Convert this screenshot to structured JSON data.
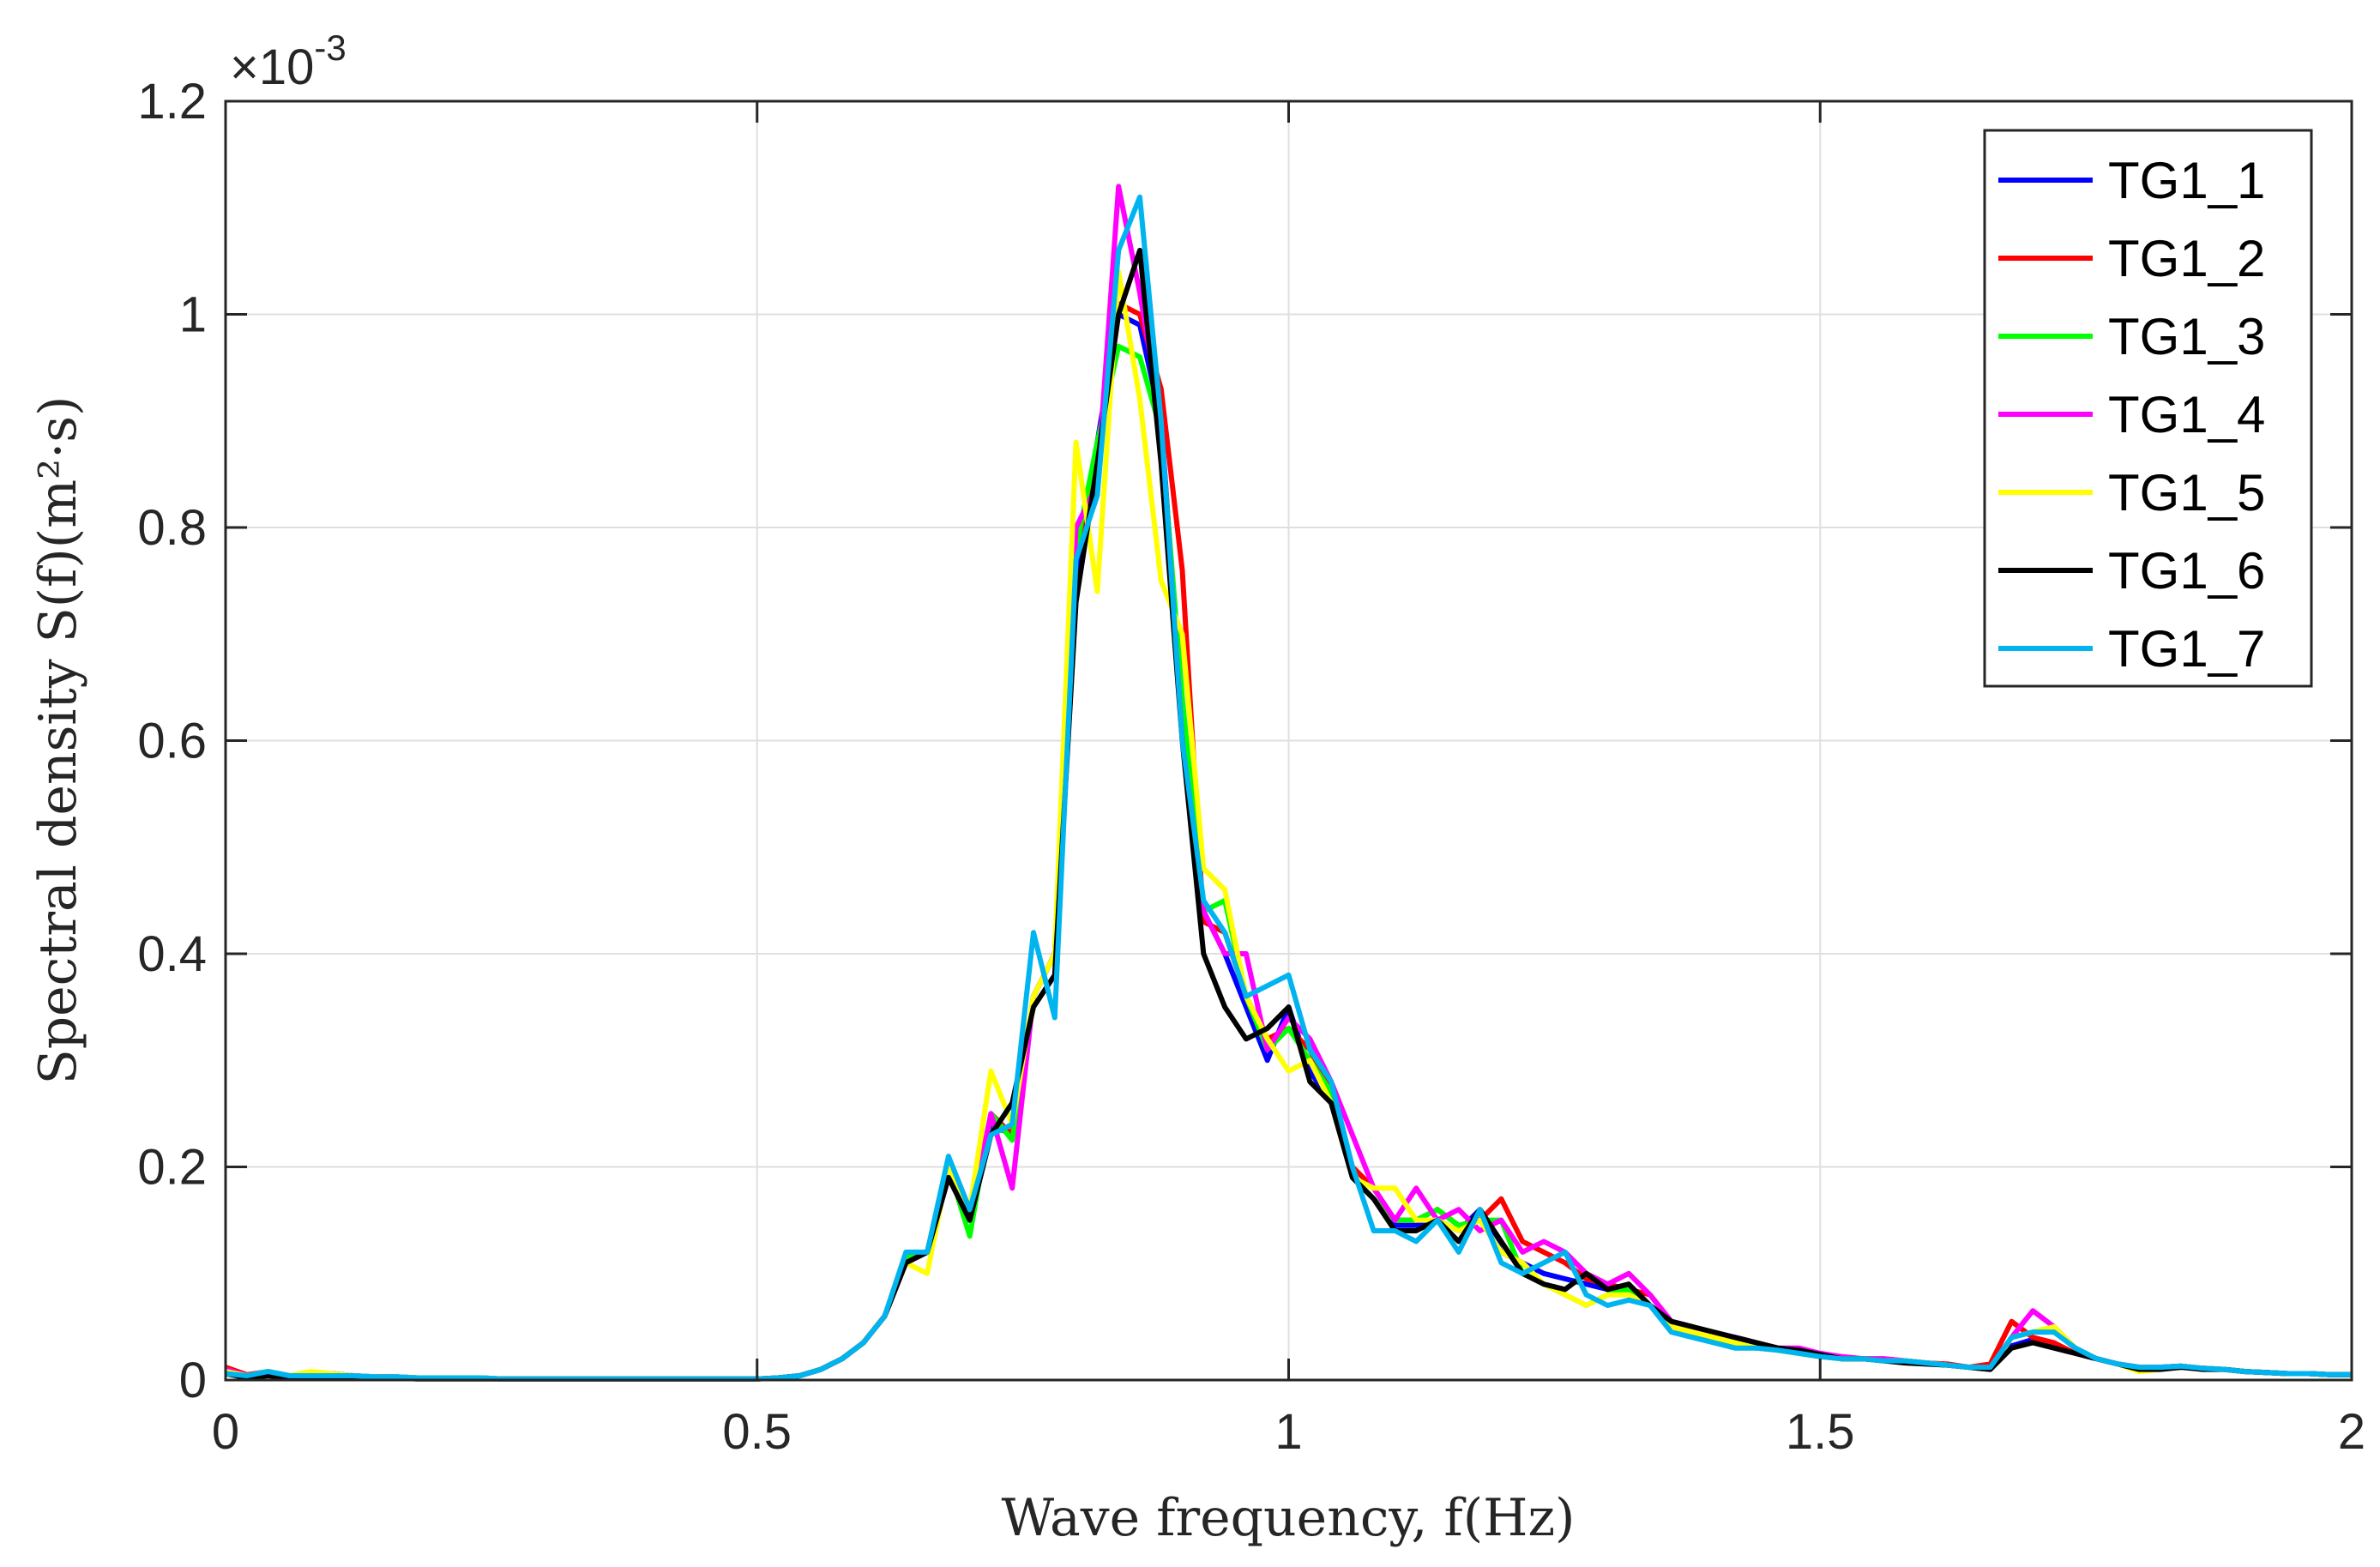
{
  "chart_data": {
    "type": "line",
    "title": "",
    "xlabel": "Wave frequency, f(Hz)",
    "ylabel": "Spectral density S(f)(m²·s)",
    "exponent_label": "×10",
    "exponent_power": "-3",
    "xlim": [
      0,
      2
    ],
    "ylim": [
      0,
      1.2
    ],
    "xticks": [
      0,
      0.5,
      1,
      1.5,
      2
    ],
    "xtick_labels": [
      "0",
      "0.5",
      "1",
      "1.5",
      "2"
    ],
    "yticks": [
      0,
      0.2,
      0.4,
      0.6,
      0.8,
      1,
      1.2
    ],
    "ytick_labels": [
      "0",
      "0.2",
      "0.4",
      "0.6",
      "0.8",
      "1",
      "1.2"
    ],
    "grid": true,
    "legend_position": "top-right",
    "x": [
      0.0,
      0.02,
      0.04,
      0.06,
      0.08,
      0.1,
      0.12,
      0.14,
      0.16,
      0.18,
      0.2,
      0.22,
      0.24,
      0.26,
      0.28,
      0.3,
      0.32,
      0.34,
      0.36,
      0.38,
      0.4,
      0.42,
      0.44,
      0.46,
      0.48,
      0.5,
      0.52,
      0.54,
      0.56,
      0.58,
      0.6,
      0.62,
      0.64,
      0.66,
      0.68,
      0.7,
      0.72,
      0.74,
      0.76,
      0.78,
      0.8,
      0.82,
      0.84,
      0.86,
      0.88,
      0.9,
      0.92,
      0.94,
      0.96,
      0.98,
      1.0,
      1.02,
      1.04,
      1.06,
      1.08,
      1.1,
      1.12,
      1.14,
      1.16,
      1.18,
      1.2,
      1.22,
      1.24,
      1.26,
      1.28,
      1.3,
      1.32,
      1.34,
      1.36,
      1.38,
      1.4,
      1.42,
      1.44,
      1.46,
      1.48,
      1.5,
      1.52,
      1.54,
      1.56,
      1.58,
      1.6,
      1.62,
      1.64,
      1.66,
      1.68,
      1.7,
      1.72,
      1.74,
      1.76,
      1.78,
      1.8,
      1.82,
      1.84,
      1.86,
      1.88,
      1.9,
      1.92,
      1.94,
      1.96,
      1.98,
      2.0
    ],
    "series": [
      {
        "name": "TG1_1",
        "color": "#0000ff",
        "values": [
          0.01,
          0.004,
          0.008,
          0.004,
          0.004,
          0.006,
          0.004,
          0.003,
          0.003,
          0.002,
          0.002,
          0.002,
          0.002,
          0.001,
          0.001,
          0.001,
          0.001,
          0.001,
          0.001,
          0.001,
          0.001,
          0.001,
          0.001,
          0.001,
          0.001,
          0.001,
          0.002,
          0.004,
          0.01,
          0.02,
          0.035,
          0.06,
          0.115,
          0.12,
          0.2,
          0.15,
          0.24,
          0.23,
          0.36,
          0.4,
          0.76,
          0.88,
          1.0,
          0.99,
          0.9,
          0.62,
          0.44,
          0.4,
          0.35,
          0.3,
          0.35,
          0.29,
          0.26,
          0.19,
          0.17,
          0.145,
          0.145,
          0.15,
          0.14,
          0.16,
          0.12,
          0.11,
          0.1,
          0.095,
          0.09,
          0.085,
          0.08,
          0.07,
          0.05,
          0.045,
          0.035,
          0.035,
          0.03,
          0.028,
          0.025,
          0.022,
          0.02,
          0.02,
          0.018,
          0.018,
          0.016,
          0.014,
          0.012,
          0.01,
          0.032,
          0.038,
          0.034,
          0.025,
          0.02,
          0.015,
          0.012,
          0.012,
          0.013,
          0.011,
          0.01,
          0.008,
          0.007,
          0.006,
          0.006,
          0.005,
          0.005
        ]
      },
      {
        "name": "TG1_2",
        "color": "#ff0000",
        "values": [
          0.012,
          0.005,
          0.008,
          0.004,
          0.004,
          0.006,
          0.004,
          0.003,
          0.003,
          0.002,
          0.002,
          0.002,
          0.002,
          0.001,
          0.001,
          0.001,
          0.001,
          0.001,
          0.001,
          0.001,
          0.001,
          0.001,
          0.001,
          0.001,
          0.001,
          0.001,
          0.002,
          0.004,
          0.01,
          0.02,
          0.035,
          0.06,
          0.11,
          0.12,
          0.2,
          0.15,
          0.25,
          0.23,
          0.36,
          0.4,
          0.78,
          0.86,
          1.01,
          1.0,
          0.93,
          0.76,
          0.43,
          0.42,
          0.36,
          0.32,
          0.33,
          0.31,
          0.27,
          0.2,
          0.18,
          0.15,
          0.15,
          0.16,
          0.145,
          0.15,
          0.17,
          0.13,
          0.12,
          0.11,
          0.095,
          0.09,
          0.085,
          0.08,
          0.055,
          0.05,
          0.04,
          0.04,
          0.035,
          0.03,
          0.028,
          0.024,
          0.022,
          0.02,
          0.02,
          0.018,
          0.016,
          0.015,
          0.012,
          0.015,
          0.055,
          0.04,
          0.035,
          0.025,
          0.02,
          0.015,
          0.012,
          0.012,
          0.013,
          0.011,
          0.01,
          0.008,
          0.007,
          0.006,
          0.006,
          0.005,
          0.005
        ]
      },
      {
        "name": "TG1_3",
        "color": "#00ff00",
        "values": [
          0.01,
          0.004,
          0.008,
          0.004,
          0.004,
          0.006,
          0.004,
          0.003,
          0.003,
          0.002,
          0.002,
          0.002,
          0.002,
          0.001,
          0.001,
          0.001,
          0.001,
          0.001,
          0.001,
          0.001,
          0.001,
          0.001,
          0.001,
          0.001,
          0.001,
          0.001,
          0.002,
          0.004,
          0.01,
          0.02,
          0.035,
          0.06,
          0.115,
          0.12,
          0.2,
          0.135,
          0.25,
          0.225,
          0.36,
          0.4,
          0.78,
          0.88,
          0.97,
          0.96,
          0.89,
          0.64,
          0.44,
          0.45,
          0.36,
          0.31,
          0.33,
          0.3,
          0.27,
          0.19,
          0.17,
          0.15,
          0.15,
          0.16,
          0.145,
          0.15,
          0.15,
          0.1,
          0.09,
          0.08,
          0.07,
          0.08,
          0.085,
          0.07,
          0.055,
          0.05,
          0.04,
          0.035,
          0.03,
          0.028,
          0.025,
          0.022,
          0.02,
          0.02,
          0.018,
          0.018,
          0.016,
          0.014,
          0.012,
          0.01,
          0.04,
          0.045,
          0.05,
          0.03,
          0.02,
          0.015,
          0.012,
          0.012,
          0.013,
          0.011,
          0.01,
          0.008,
          0.007,
          0.006,
          0.006,
          0.005,
          0.005
        ]
      },
      {
        "name": "TG1_4",
        "color": "#ff00ff",
        "values": [
          0.01,
          0.004,
          0.008,
          0.004,
          0.004,
          0.006,
          0.004,
          0.003,
          0.003,
          0.002,
          0.002,
          0.002,
          0.002,
          0.001,
          0.001,
          0.001,
          0.001,
          0.001,
          0.001,
          0.001,
          0.001,
          0.001,
          0.001,
          0.001,
          0.001,
          0.001,
          0.002,
          0.004,
          0.01,
          0.02,
          0.035,
          0.06,
          0.11,
          0.12,
          0.2,
          0.15,
          0.25,
          0.18,
          0.36,
          0.4,
          0.8,
          0.84,
          1.12,
          1.02,
          0.9,
          0.6,
          0.44,
          0.4,
          0.4,
          0.31,
          0.34,
          0.32,
          0.28,
          0.23,
          0.18,
          0.15,
          0.18,
          0.15,
          0.16,
          0.14,
          0.15,
          0.12,
          0.13,
          0.12,
          0.1,
          0.09,
          0.1,
          0.08,
          0.055,
          0.05,
          0.04,
          0.04,
          0.035,
          0.03,
          0.03,
          0.025,
          0.022,
          0.02,
          0.02,
          0.018,
          0.016,
          0.014,
          0.012,
          0.01,
          0.04,
          0.065,
          0.05,
          0.03,
          0.02,
          0.015,
          0.012,
          0.012,
          0.013,
          0.011,
          0.01,
          0.008,
          0.007,
          0.006,
          0.006,
          0.005,
          0.005
        ]
      },
      {
        "name": "TG1_5",
        "color": "#ffff00",
        "values": [
          0.008,
          0.004,
          0.008,
          0.004,
          0.008,
          0.006,
          0.004,
          0.003,
          0.003,
          0.002,
          0.002,
          0.002,
          0.002,
          0.001,
          0.001,
          0.001,
          0.001,
          0.001,
          0.001,
          0.001,
          0.001,
          0.001,
          0.001,
          0.001,
          0.001,
          0.001,
          0.002,
          0.004,
          0.01,
          0.02,
          0.035,
          0.06,
          0.11,
          0.1,
          0.2,
          0.16,
          0.29,
          0.24,
          0.36,
          0.4,
          0.88,
          0.74,
          1.04,
          0.92,
          0.75,
          0.7,
          0.48,
          0.46,
          0.36,
          0.32,
          0.29,
          0.3,
          0.26,
          0.19,
          0.18,
          0.18,
          0.15,
          0.15,
          0.14,
          0.15,
          0.12,
          0.11,
          0.09,
          0.08,
          0.07,
          0.08,
          0.08,
          0.07,
          0.05,
          0.045,
          0.04,
          0.035,
          0.03,
          0.028,
          0.025,
          0.022,
          0.02,
          0.02,
          0.018,
          0.018,
          0.016,
          0.014,
          0.012,
          0.01,
          0.04,
          0.045,
          0.05,
          0.03,
          0.02,
          0.015,
          0.008,
          0.01,
          0.013,
          0.011,
          0.01,
          0.008,
          0.007,
          0.006,
          0.006,
          0.005,
          0.005
        ]
      },
      {
        "name": "TG1_6",
        "color": "#000000",
        "values": [
          0.006,
          0.002,
          0.004,
          0.002,
          0.002,
          0.003,
          0.002,
          0.002,
          0.002,
          0.001,
          0.001,
          0.001,
          0.001,
          0.001,
          0.001,
          0.001,
          0.001,
          0.001,
          0.001,
          0.001,
          0.001,
          0.001,
          0.001,
          0.001,
          0.001,
          0.001,
          0.002,
          0.004,
          0.01,
          0.02,
          0.035,
          0.06,
          0.11,
          0.12,
          0.19,
          0.15,
          0.23,
          0.26,
          0.35,
          0.38,
          0.73,
          0.86,
          1.0,
          1.06,
          0.86,
          0.6,
          0.4,
          0.35,
          0.32,
          0.33,
          0.35,
          0.28,
          0.26,
          0.19,
          0.17,
          0.14,
          0.14,
          0.15,
          0.13,
          0.16,
          0.13,
          0.1,
          0.09,
          0.085,
          0.1,
          0.085,
          0.09,
          0.07,
          0.055,
          0.05,
          0.045,
          0.04,
          0.035,
          0.03,
          0.028,
          0.024,
          0.02,
          0.02,
          0.018,
          0.016,
          0.015,
          0.014,
          0.012,
          0.01,
          0.03,
          0.035,
          0.03,
          0.025,
          0.02,
          0.015,
          0.01,
          0.01,
          0.012,
          0.01,
          0.01,
          0.008,
          0.007,
          0.006,
          0.006,
          0.005,
          0.005
        ]
      },
      {
        "name": "TG1_7",
        "color": "#00b4f0",
        "values": [
          0.006,
          0.004,
          0.008,
          0.004,
          0.004,
          0.004,
          0.004,
          0.003,
          0.003,
          0.002,
          0.002,
          0.002,
          0.002,
          0.001,
          0.001,
          0.001,
          0.001,
          0.001,
          0.001,
          0.001,
          0.001,
          0.001,
          0.001,
          0.001,
          0.001,
          0.001,
          0.002,
          0.004,
          0.01,
          0.02,
          0.035,
          0.06,
          0.12,
          0.12,
          0.21,
          0.16,
          0.23,
          0.24,
          0.42,
          0.34,
          0.77,
          0.83,
          1.06,
          1.11,
          0.9,
          0.6,
          0.45,
          0.42,
          0.36,
          0.37,
          0.38,
          0.31,
          0.28,
          0.2,
          0.14,
          0.14,
          0.13,
          0.15,
          0.12,
          0.16,
          0.11,
          0.1,
          0.11,
          0.12,
          0.08,
          0.07,
          0.075,
          0.07,
          0.045,
          0.04,
          0.035,
          0.03,
          0.03,
          0.028,
          0.025,
          0.022,
          0.02,
          0.02,
          0.018,
          0.018,
          0.016,
          0.014,
          0.012,
          0.012,
          0.04,
          0.045,
          0.045,
          0.03,
          0.02,
          0.015,
          0.012,
          0.012,
          0.013,
          0.011,
          0.01,
          0.008,
          0.007,
          0.006,
          0.006,
          0.005,
          0.005
        ]
      }
    ]
  }
}
